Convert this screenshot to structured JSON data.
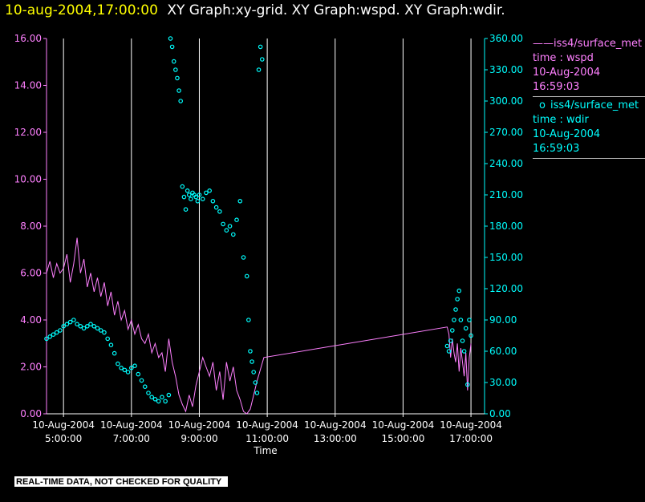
{
  "header": {
    "time": "10-aug-2004,17:00:00",
    "graphs": "XY Graph:xy-grid.  XY Graph:wspd.  XY Graph:wdir."
  },
  "legend": {
    "wspd": {
      "marker": "——",
      "name": "iss4/surface_met",
      "field": "time : wspd",
      "date": "10-Aug-2004",
      "time": "16:59:03"
    },
    "wdir": {
      "marker": "o",
      "name": "iss4/surface_met",
      "field": "time : wdir",
      "date": "10-Aug-2004",
      "time": "16:59:03"
    }
  },
  "footer": {
    "quality_note": "REAL-TIME DATA, NOT CHECKED FOR QUALITY"
  },
  "colors": {
    "wspd": "#ff80ff",
    "wdir": "#00ffff",
    "grid": "#ffffff",
    "axes": "#ffffff",
    "title_time": "#ffff00"
  },
  "chart_data": {
    "type": "line",
    "title": "XY Graph:xy-grid.  XY Graph:wspd.  XY Graph:wdir.",
    "xlabel": "Time",
    "ylabel_left": "",
    "ylabel_right": "",
    "x_unit": "hours of day, 10-Aug-2004",
    "xlim": [
      4.5,
      17.4
    ],
    "x_ticks": [
      {
        "value": 5,
        "date": "10-Aug-2004",
        "time": "5:00:00"
      },
      {
        "value": 7,
        "date": "10-Aug-2004",
        "time": "7:00:00"
      },
      {
        "value": 9,
        "date": "10-Aug-2004",
        "time": "9:00:00"
      },
      {
        "value": 11,
        "date": "10-Aug-2004",
        "time": "11:00:00"
      },
      {
        "value": 13,
        "date": "10-Aug-2004",
        "time": "13:00:00"
      },
      {
        "value": 15,
        "date": "10-Aug-2004",
        "time": "15:00:00"
      },
      {
        "value": 17,
        "date": "10-Aug-2004",
        "time": "17:00:00"
      }
    ],
    "grid": true,
    "legend_position": "right",
    "y_left": {
      "ylim": [
        0,
        16
      ],
      "ticks": [
        "0.00",
        "2.00",
        "4.00",
        "6.00",
        "8.00",
        "10.00",
        "12.00",
        "14.00",
        "16.00"
      ],
      "tick_values": [
        0,
        2,
        4,
        6,
        8,
        10,
        12,
        14,
        16
      ]
    },
    "y_right": {
      "ylim": [
        0,
        360
      ],
      "ticks": [
        "0.00",
        "30.00",
        "60.00",
        "90.00",
        "120.00",
        "150.00",
        "180.00",
        "210.00",
        "240.00",
        "270.00",
        "300.00",
        "330.00",
        "360.00"
      ],
      "tick_values": [
        0,
        30,
        60,
        90,
        120,
        150,
        180,
        210,
        240,
        270,
        300,
        330,
        360
      ]
    },
    "series": [
      {
        "name": "iss4/surface_met time : wspd",
        "axis": "left",
        "style": "line",
        "x": [
          4.5,
          4.6,
          4.7,
          4.8,
          4.9,
          5.0,
          5.1,
          5.2,
          5.3,
          5.4,
          5.5,
          5.6,
          5.7,
          5.8,
          5.9,
          6.0,
          6.1,
          6.2,
          6.3,
          6.4,
          6.5,
          6.6,
          6.7,
          6.8,
          6.9,
          7.0,
          7.1,
          7.2,
          7.3,
          7.4,
          7.5,
          7.6,
          7.7,
          7.8,
          7.9,
          8.0,
          8.1,
          8.2,
          8.3,
          8.4,
          8.5,
          8.6,
          8.7,
          8.8,
          8.9,
          9.0,
          9.1,
          9.2,
          9.3,
          9.4,
          9.5,
          9.6,
          9.7,
          9.8,
          9.9,
          10.0,
          10.1,
          10.2,
          10.3,
          10.4,
          10.5,
          10.6,
          10.7,
          10.8,
          10.9,
          16.3,
          16.35,
          16.4,
          16.45,
          16.5,
          16.55,
          16.6,
          16.65,
          16.7,
          16.75,
          16.8,
          16.85,
          16.9,
          16.95,
          17.0
        ],
        "values": [
          6.0,
          6.5,
          5.8,
          6.4,
          6.0,
          6.2,
          6.8,
          5.6,
          6.4,
          7.5,
          6.0,
          6.6,
          5.4,
          6.0,
          5.2,
          5.8,
          5.0,
          5.6,
          4.6,
          5.2,
          4.2,
          4.8,
          4.0,
          4.4,
          3.6,
          4.0,
          3.4,
          3.8,
          3.2,
          3.0,
          3.4,
          2.6,
          3.0,
          2.4,
          2.6,
          1.8,
          3.2,
          2.2,
          1.6,
          0.8,
          0.4,
          0.1,
          0.8,
          0.3,
          1.2,
          1.8,
          2.4,
          2.0,
          1.6,
          2.2,
          1.0,
          1.8,
          0.6,
          2.2,
          1.4,
          2.0,
          1.0,
          0.6,
          0.1,
          0.0,
          0.2,
          0.8,
          1.4,
          1.9,
          2.4,
          3.7,
          3.4,
          2.4,
          3.2,
          2.6,
          2.2,
          3.0,
          1.8,
          2.8,
          2.2,
          1.6,
          2.6,
          1.0,
          2.4,
          3.0
        ]
      },
      {
        "name": "iss4/surface_met time : wdir",
        "axis": "right",
        "style": "scatter",
        "x": [
          4.5,
          4.6,
          4.7,
          4.8,
          4.9,
          5.0,
          5.1,
          5.2,
          5.3,
          5.4,
          5.5,
          5.6,
          5.7,
          5.8,
          5.9,
          6.0,
          6.1,
          6.2,
          6.3,
          6.4,
          6.5,
          6.6,
          6.7,
          6.8,
          6.9,
          7.0,
          7.1,
          7.2,
          7.3,
          7.4,
          7.5,
          7.6,
          7.7,
          7.8,
          7.9,
          8.0,
          8.1,
          8.15,
          8.2,
          8.25,
          8.3,
          8.35,
          8.4,
          8.45,
          8.5,
          8.55,
          8.6,
          8.65,
          8.7,
          8.75,
          8.8,
          8.85,
          8.9,
          8.95,
          9.0,
          9.1,
          9.2,
          9.3,
          9.4,
          9.5,
          9.6,
          9.7,
          9.8,
          9.9,
          10.0,
          10.1,
          10.2,
          10.3,
          10.4,
          10.45,
          10.5,
          10.55,
          10.6,
          10.65,
          10.7,
          10.75,
          10.8,
          10.85,
          16.3,
          16.35,
          16.4,
          16.45,
          16.5,
          16.55,
          16.6,
          16.65,
          16.7,
          16.75,
          16.8,
          16.85,
          16.9,
          16.95,
          17.0
        ],
        "values": [
          72,
          74,
          76,
          78,
          80,
          84,
          86,
          88,
          90,
          86,
          84,
          82,
          84,
          86,
          84,
          82,
          80,
          78,
          72,
          66,
          58,
          48,
          44,
          42,
          40,
          44,
          46,
          38,
          32,
          26,
          20,
          16,
          14,
          12,
          16,
          12,
          18,
          360,
          352,
          338,
          330,
          322,
          310,
          300,
          218,
          208,
          196,
          214,
          210,
          206,
          212,
          210,
          208,
          204,
          210,
          206,
          212,
          214,
          204,
          198,
          194,
          182,
          176,
          180,
          172,
          186,
          204,
          150,
          132,
          90,
          60,
          50,
          40,
          30,
          20,
          330,
          352,
          340,
          65,
          60,
          70,
          80,
          90,
          100,
          110,
          118,
          90,
          70,
          60,
          82,
          28,
          90,
          75
        ]
      }
    ]
  }
}
